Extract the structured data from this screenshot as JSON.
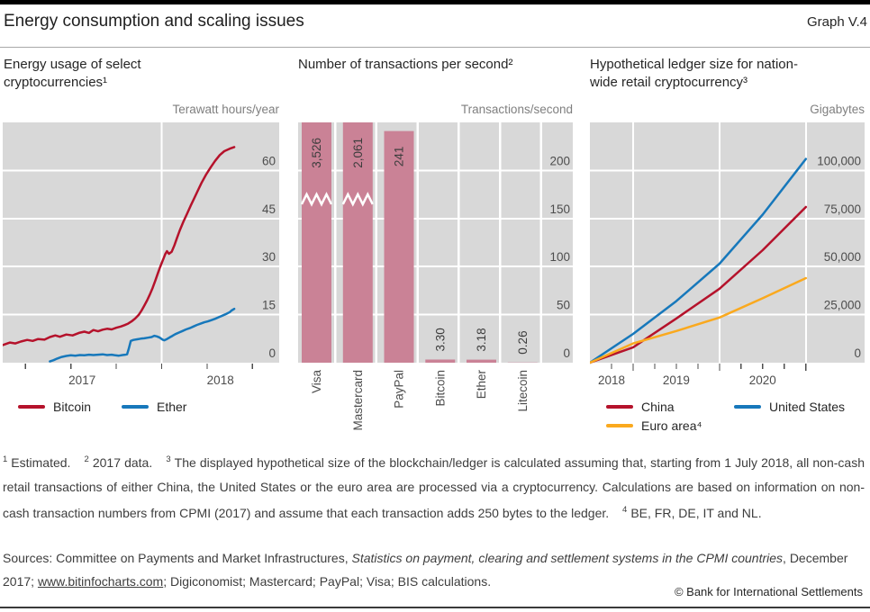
{
  "header": {
    "title": "Energy consumption and scaling issues",
    "graph_label": "Graph V.4"
  },
  "chart_data": [
    {
      "type": "line",
      "title": "Energy usage of select cryptocurrencies¹",
      "ylabel": "Terawatt hours/year",
      "xlabel": "",
      "grid": true,
      "bg_color": "#d8d8d8",
      "x_range": [
        2017.0,
        2018.74
      ],
      "ylim": [
        0,
        75
      ],
      "y_ticks": [
        0,
        15,
        30,
        45,
        60
      ],
      "y_tick_labels": [
        "0",
        "15",
        "30",
        "45",
        "60"
      ],
      "x_gridlines": [
        2018.0
      ],
      "x_ticks_minor": [
        2017.143,
        2017.429,
        2017.714,
        2018.0,
        2018.286,
        2018.571
      ],
      "x_labels": [
        {
          "text": "2017",
          "at": 2017.5
        },
        {
          "text": "2018",
          "at": 2018.37
        }
      ],
      "legend_position": "below",
      "series": [
        {
          "name": "Bitcoin",
          "color": "#b5122b",
          "points": [
            [
              2017.0,
              5.5
            ],
            [
              2017.046,
              6.3
            ],
            [
              2017.08,
              6.0
            ],
            [
              2017.114,
              6.6
            ],
            [
              2017.154,
              7.1
            ],
            [
              2017.189,
              6.8
            ],
            [
              2017.223,
              7.4
            ],
            [
              2017.263,
              7.2
            ],
            [
              2017.297,
              8.0
            ],
            [
              2017.331,
              8.5
            ],
            [
              2017.36,
              8.1
            ],
            [
              2017.4,
              8.8
            ],
            [
              2017.44,
              8.5
            ],
            [
              2017.48,
              9.3
            ],
            [
              2017.514,
              9.7
            ],
            [
              2017.543,
              9.3
            ],
            [
              2017.571,
              10.2
            ],
            [
              2017.6,
              9.8
            ],
            [
              2017.629,
              10.3
            ],
            [
              2017.657,
              10.6
            ],
            [
              2017.686,
              10.4
            ],
            [
              2017.714,
              10.9
            ],
            [
              2017.743,
              11.3
            ],
            [
              2017.766,
              11.7
            ],
            [
              2017.789,
              12.2
            ],
            [
              2017.811,
              12.9
            ],
            [
              2017.834,
              13.8
            ],
            [
              2017.857,
              15.0
            ],
            [
              2017.874,
              16.3
            ],
            [
              2017.891,
              17.8
            ],
            [
              2017.909,
              19.5
            ],
            [
              2017.926,
              21.3
            ],
            [
              2017.943,
              23.3
            ],
            [
              2017.96,
              25.6
            ],
            [
              2017.977,
              28.0
            ],
            [
              2017.994,
              30.3
            ],
            [
              2018.011,
              32.4
            ],
            [
              2018.023,
              33.9
            ],
            [
              2018.034,
              34.8
            ],
            [
              2018.046,
              34.0
            ],
            [
              2018.063,
              34.6
            ],
            [
              2018.08,
              36.6
            ],
            [
              2018.097,
              39.0
            ],
            [
              2018.114,
              41.3
            ],
            [
              2018.137,
              44.0
            ],
            [
              2018.16,
              46.5
            ],
            [
              2018.183,
              49.0
            ],
            [
              2018.206,
              51.4
            ],
            [
              2018.229,
              53.8
            ],
            [
              2018.251,
              56.1
            ],
            [
              2018.28,
              58.7
            ],
            [
              2018.309,
              61.0
            ],
            [
              2018.337,
              63.0
            ],
            [
              2018.366,
              64.8
            ],
            [
              2018.394,
              66.0
            ],
            [
              2018.429,
              66.8
            ],
            [
              2018.457,
              67.3
            ]
          ]
        },
        {
          "name": "Ether",
          "color": "#1778bb",
          "points": [
            [
              2017.297,
              0.4
            ],
            [
              2017.32,
              0.8
            ],
            [
              2017.343,
              1.3
            ],
            [
              2017.371,
              1.8
            ],
            [
              2017.4,
              2.1
            ],
            [
              2017.429,
              2.3
            ],
            [
              2017.457,
              2.2
            ],
            [
              2017.486,
              2.4
            ],
            [
              2017.514,
              2.3
            ],
            [
              2017.543,
              2.5
            ],
            [
              2017.571,
              2.4
            ],
            [
              2017.6,
              2.5
            ],
            [
              2017.629,
              2.6
            ],
            [
              2017.657,
              2.4
            ],
            [
              2017.686,
              2.5
            ],
            [
              2017.709,
              2.3
            ],
            [
              2017.731,
              2.2
            ],
            [
              2017.754,
              2.4
            ],
            [
              2017.771,
              2.5
            ],
            [
              2017.783,
              2.6
            ],
            [
              2017.794,
              4.5
            ],
            [
              2017.806,
              6.8
            ],
            [
              2017.823,
              7.1
            ],
            [
              2017.846,
              7.3
            ],
            [
              2017.869,
              7.5
            ],
            [
              2017.891,
              7.6
            ],
            [
              2017.914,
              7.8
            ],
            [
              2017.937,
              8.0
            ],
            [
              2017.954,
              8.4
            ],
            [
              2017.971,
              8.2
            ],
            [
              2017.989,
              7.8
            ],
            [
              2018.006,
              7.2
            ],
            [
              2018.017,
              7.0
            ],
            [
              2018.034,
              7.4
            ],
            [
              2018.051,
              7.9
            ],
            [
              2018.069,
              8.4
            ],
            [
              2018.086,
              8.9
            ],
            [
              2018.109,
              9.4
            ],
            [
              2018.131,
              9.9
            ],
            [
              2018.154,
              10.4
            ],
            [
              2018.177,
              10.8
            ],
            [
              2018.2,
              11.3
            ],
            [
              2018.223,
              11.8
            ],
            [
              2018.246,
              12.2
            ],
            [
              2018.269,
              12.6
            ],
            [
              2018.291,
              12.9
            ],
            [
              2018.314,
              13.3
            ],
            [
              2018.337,
              13.7
            ],
            [
              2018.36,
              14.2
            ],
            [
              2018.383,
              14.7
            ],
            [
              2018.406,
              15.2
            ],
            [
              2018.429,
              15.8
            ],
            [
              2018.44,
              16.3
            ],
            [
              2018.457,
              16.8
            ]
          ]
        }
      ]
    },
    {
      "type": "bar",
      "title": "Number of transactions per second²",
      "ylabel": "Transactions/second",
      "xlabel": "",
      "grid": true,
      "bg_color": "#d8d8d8",
      "bar_color": "#ca8296",
      "ylim": [
        0,
        250
      ],
      "y_ticks": [
        0,
        50,
        100,
        150,
        200
      ],
      "y_tick_labels": [
        "0",
        "50",
        "100",
        "150",
        "200"
      ],
      "categories": [
        "Visa",
        "Mastercard",
        "PayPal",
        "Bitcoin",
        "Ether",
        "Litecoin"
      ],
      "values": [
        3526,
        2061,
        241,
        3.3,
        3.18,
        0.26
      ],
      "value_labels": [
        "3,526",
        "2,061",
        "241",
        "3.30",
        "3.18",
        "0.26"
      ],
      "clipped": [
        true,
        true,
        false,
        false,
        false,
        false
      ],
      "break_value": 170
    },
    {
      "type": "line",
      "title": "Hypothetical ledger size for nation-wide retail cryptocurrency³",
      "ylabel": "Gigabytes",
      "xlabel": "",
      "grid": true,
      "bg_color": "#d8d8d8",
      "x_range": [
        2018.5,
        2021.68
      ],
      "ylim": [
        0,
        125000
      ],
      "y_ticks": [
        0,
        25000,
        50000,
        75000,
        100000
      ],
      "y_tick_labels": [
        "0",
        "25,000",
        "50,000",
        "75,000",
        "100,000"
      ],
      "x_gridlines": [
        2019.0,
        2020.0,
        2021.0
      ],
      "x_ticks_major": [
        2019.0,
        2020.0,
        2021.0
      ],
      "x_ticks_minor": [
        2018.75,
        2019.25,
        2019.5,
        2019.75,
        2020.25,
        2020.5,
        2020.75
      ],
      "x_labels": [
        {
          "text": "2018",
          "at": 2018.75
        },
        {
          "text": "2019",
          "at": 2019.5
        },
        {
          "text": "2020",
          "at": 2020.5
        }
      ],
      "legend_position": "below",
      "series": [
        {
          "name": "China",
          "color": "#b5122b",
          "points": [
            [
              2018.5,
              0
            ],
            [
              2019.0,
              8000
            ],
            [
              2019.5,
              23000
            ],
            [
              2020.0,
              38500
            ],
            [
              2020.5,
              58500
            ],
            [
              2021.0,
              81000
            ]
          ]
        },
        {
          "name": "United States",
          "color": "#1778bb",
          "points": [
            [
              2018.5,
              0
            ],
            [
              2019.0,
              15000
            ],
            [
              2019.5,
              32000
            ],
            [
              2020.0,
              51500
            ],
            [
              2020.5,
              77000
            ],
            [
              2021.0,
              106000
            ]
          ]
        },
        {
          "name": "Euro area⁴",
          "color": "#faa91e",
          "points": [
            [
              2018.5,
              0
            ],
            [
              2019.0,
              10000
            ],
            [
              2019.5,
              16500
            ],
            [
              2020.0,
              23500
            ],
            [
              2020.5,
              33500
            ],
            [
              2021.0,
              44000
            ]
          ]
        }
      ]
    }
  ],
  "footnotes": [
    {
      "sup": "1",
      "text": "Estimated."
    },
    {
      "sup": "2",
      "text": "2017 data."
    },
    {
      "sup": "3",
      "text": "The displayed hypothetical size of the blockchain/ledger is calculated assuming that, starting from 1 July 2018, all non-cash retail transactions of either China, the United States or the euro area are processed via a cryptocurrency. Calculations are based on information on non-cash transaction numbers from CPMI (2017) and assume that each transaction adds 250 bytes to the ledger."
    },
    {
      "sup": "4",
      "text": "BE, FR, DE, IT and NL."
    }
  ],
  "sources_segments": [
    {
      "text": "Sources: Committee on Payments and Market Infrastructures, "
    },
    {
      "text": "Statistics on payment, clearing and settlement systems in the CPMI countries",
      "italic": true
    },
    {
      "text": ", December 2017; "
    },
    {
      "text": "www.bitinfocharts.com",
      "link": true
    },
    {
      "text": "; Digiconomist; Mastercard; PayPal; Visa; BIS calculations."
    }
  ],
  "copyright": "© Bank for International Settlements",
  "colors": {
    "bitcoin_red": "#b5122b",
    "ether_blue": "#1778bb",
    "euro_yellow": "#faa91e",
    "bar_pink": "#ca8296",
    "plot_bg": "#d8d8d8",
    "axis_text": "#4d4d4d"
  }
}
